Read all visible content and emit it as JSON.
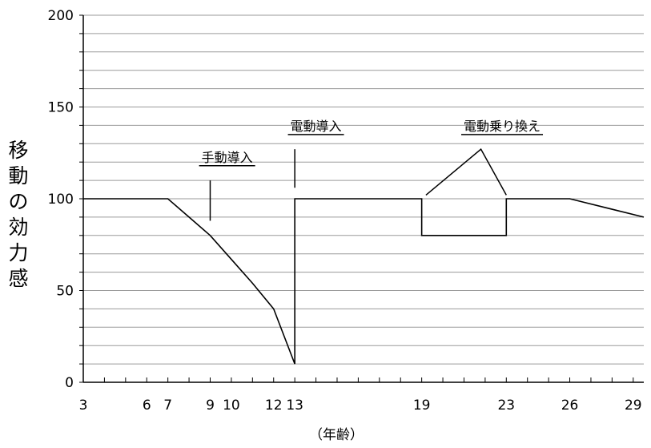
{
  "chart_data": {
    "type": "line",
    "title": "",
    "xlabel": "（年齢）",
    "ylabel_chars": [
      "移",
      "動",
      "の",
      "効",
      "力",
      "感"
    ],
    "xlim": [
      3,
      29.5
    ],
    "ylim": [
      0,
      200
    ],
    "x_ticks": [
      "3",
      "6",
      "7",
      "9",
      "10",
      "12",
      "13",
      "19",
      "23",
      "26",
      "29"
    ],
    "y_ticks": [
      "0",
      "50",
      "100",
      "150",
      "200"
    ],
    "grid": true,
    "series": [
      {
        "points": [
          [
            3,
            100
          ],
          [
            7,
            100
          ],
          [
            8,
            90
          ],
          [
            9,
            80
          ],
          [
            10,
            67
          ],
          [
            11,
            54
          ],
          [
            12,
            40
          ],
          [
            12.5,
            25
          ],
          [
            13,
            10
          ],
          [
            13,
            100
          ],
          [
            19,
            100
          ],
          [
            19,
            80
          ],
          [
            23,
            80
          ],
          [
            23,
            100
          ],
          [
            26,
            100
          ],
          [
            29.5,
            90
          ]
        ]
      }
    ],
    "annotations": [
      {
        "text": "手動導入",
        "x": 9.8,
        "y": 118,
        "pointer": [
          [
            9.0,
            110
          ],
          [
            9.0,
            88
          ]
        ]
      },
      {
        "text": "電動導入",
        "x": 14.0,
        "y": 135,
        "pointer": [
          [
            13.0,
            127
          ],
          [
            13.0,
            106
          ]
        ]
      },
      {
        "text": "電動乗り換え",
        "x": 22.8,
        "y": 135,
        "pointer": [
          [
            19.2,
            102
          ],
          [
            21.8,
            127
          ],
          [
            23.0,
            102
          ]
        ]
      }
    ]
  }
}
